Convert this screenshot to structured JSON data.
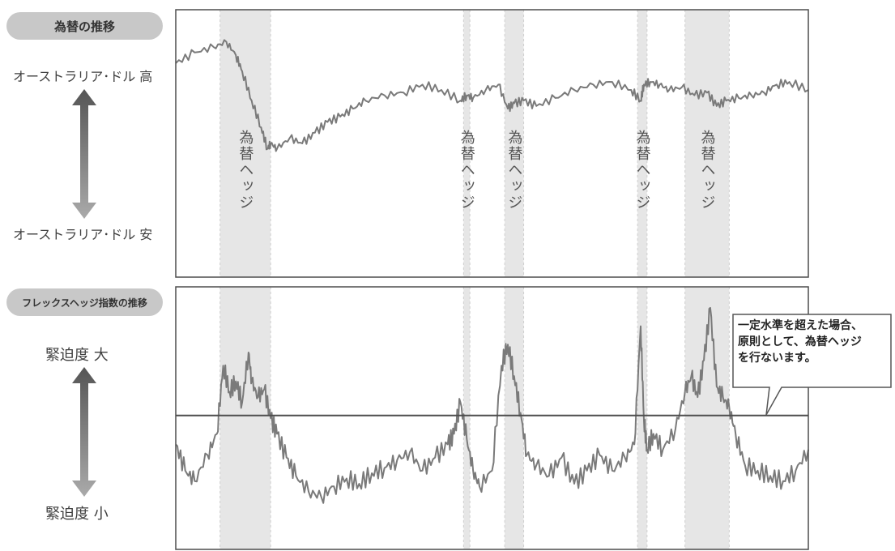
{
  "panel_top": {
    "pill": "為替の推移",
    "high_label": "オーストラリア･ドル 高",
    "low_label": "オーストラリア･ドル 安"
  },
  "panel_bottom": {
    "pill": "フレックスヘッジ指数の推移",
    "high_label": "緊迫度 大",
    "low_label": "緊迫度 小",
    "callout": [
      "一定水準を超えた場合、",
      "原則として、為替ヘッジ",
      "を行ないます。"
    ]
  },
  "colors": {
    "line": "#7a7a7a",
    "band": "#e6e6e6",
    "frame": "#4d4d4d",
    "arrow_dark": "#555555",
    "arrow_light": "#aaaaaa"
  },
  "chart_data": [
    {
      "type": "line",
      "title": "為替の推移",
      "xlabel": "",
      "ylabel": "",
      "x_range": [
        0,
        100
      ],
      "ylim": [
        0,
        100
      ],
      "hedge_label": "為替ヘッジ",
      "hedge_periods": [
        [
          7,
          15
        ],
        [
          45.5,
          46.5
        ],
        [
          52,
          55
        ],
        [
          73,
          74.5
        ],
        [
          80.5,
          87.5
        ]
      ],
      "series": [
        {
          "x": [
            0,
            3,
            6,
            8,
            9.5,
            10.5,
            12,
            13.5,
            14.5,
            15,
            16,
            18,
            20,
            22,
            24,
            26,
            28,
            30,
            33,
            36,
            39,
            42,
            45,
            46,
            47,
            49,
            51,
            52.5,
            53.5,
            55,
            57,
            60,
            63,
            66,
            69,
            72,
            73.5,
            74,
            75,
            76.5,
            78,
            80,
            82,
            84,
            85.5,
            87,
            89,
            91,
            93,
            95,
            97,
            100
          ],
          "values": [
            80,
            84,
            86,
            88,
            83,
            77,
            66,
            56,
            48,
            50,
            48,
            52,
            50,
            54,
            58,
            60,
            63,
            66,
            68,
            69,
            72,
            70,
            66,
            68,
            67,
            70,
            72,
            63,
            65,
            66,
            64,
            67,
            70,
            72,
            73,
            70,
            66,
            72,
            73,
            72,
            70,
            71,
            68,
            69,
            64,
            66,
            67,
            68,
            69,
            72,
            73,
            70
          ]
        }
      ]
    },
    {
      "type": "line",
      "title": "フレックスヘッジ指数の推移",
      "xlabel": "",
      "ylabel": "",
      "x_range": [
        0,
        100
      ],
      "ylim": [
        0,
        100
      ],
      "threshold": 51,
      "hedge_label": "為替ヘッジ",
      "hedge_periods": [
        [
          7,
          15
        ],
        [
          45.5,
          46.5
        ],
        [
          52,
          55
        ],
        [
          73,
          74.5
        ],
        [
          80.5,
          87.5
        ]
      ],
      "series": [
        {
          "x": [
            0,
            1.5,
            3,
            5,
            6.5,
            7.5,
            8.5,
            9.5,
            10.5,
            11.5,
            12,
            13,
            14,
            15,
            16,
            17.5,
            19,
            21,
            23,
            25,
            27,
            29,
            31,
            33,
            35,
            37,
            39,
            41,
            43,
            44,
            45,
            46,
            47,
            48,
            50,
            51.5,
            52.5,
            53.5,
            54.5,
            55.5,
            57,
            59,
            61,
            63,
            65,
            67,
            69,
            71,
            72.5,
            73.5,
            74,
            74.5,
            75.5,
            77,
            79,
            80.5,
            81.5,
            82.5,
            83.5,
            84.5,
            85.5,
            86.5,
            87.5,
            88.5,
            90,
            92,
            94,
            96,
            98,
            100
          ],
          "values": [
            40,
            30,
            26,
            36,
            44,
            70,
            60,
            64,
            56,
            75,
            64,
            58,
            61,
            50,
            44,
            35,
            28,
            22,
            20,
            24,
            27,
            25,
            29,
            31,
            34,
            37,
            30,
            35,
            40,
            44,
            56,
            42,
            30,
            24,
            30,
            70,
            78,
            66,
            52,
            36,
            32,
            28,
            35,
            25,
            30,
            36,
            30,
            35,
            40,
            85,
            50,
            38,
            44,
            38,
            46,
            60,
            66,
            58,
            72,
            92,
            62,
            58,
            54,
            44,
            32,
            30,
            28,
            26,
            30,
            38
          ]
        }
      ]
    }
  ]
}
